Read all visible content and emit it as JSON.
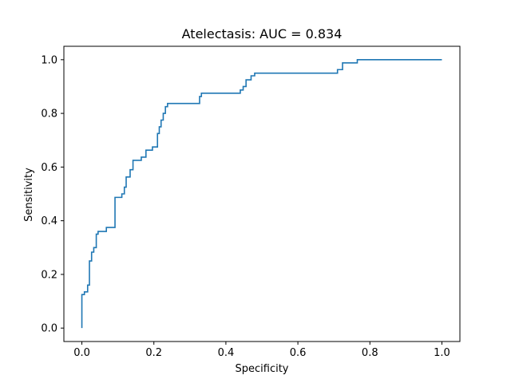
{
  "chart_data": {
    "type": "line",
    "title": "Atelectasis: AUC = 0.834",
    "xlabel": "Specificity",
    "ylabel": "Sensitivity",
    "xlim": [
      -0.05,
      1.05
    ],
    "ylim": [
      -0.05,
      1.05
    ],
    "xticks": [
      0.0,
      0.2,
      0.4,
      0.6,
      0.8,
      1.0
    ],
    "yticks": [
      0.0,
      0.2,
      0.4,
      0.6,
      0.8,
      1.0
    ],
    "xtick_labels": [
      "0.0",
      "0.2",
      "0.4",
      "0.6",
      "0.8",
      "1.0"
    ],
    "ytick_labels": [
      "0.0",
      "0.2",
      "0.4",
      "0.6",
      "0.8",
      "1.0"
    ],
    "grid": false,
    "series": [
      {
        "color": "#1f77b4",
        "x": [
          0.0,
          0.0,
          0.007,
          0.007,
          0.016,
          0.016,
          0.021,
          0.021,
          0.027,
          0.027,
          0.033,
          0.033,
          0.04,
          0.04,
          0.045,
          0.045,
          0.05,
          0.05,
          0.068,
          0.068,
          0.092,
          0.092,
          0.111,
          0.111,
          0.118,
          0.118,
          0.123,
          0.123,
          0.134,
          0.134,
          0.142,
          0.142,
          0.165,
          0.165,
          0.178,
          0.178,
          0.196,
          0.196,
          0.21,
          0.21,
          0.215,
          0.215,
          0.22,
          0.22,
          0.226,
          0.226,
          0.232,
          0.232,
          0.238,
          0.238,
          0.257,
          0.257,
          0.327,
          0.327,
          0.332,
          0.332,
          0.44,
          0.44,
          0.448,
          0.448,
          0.456,
          0.456,
          0.47,
          0.47,
          0.48,
          0.48,
          0.487,
          0.487,
          0.71,
          0.71,
          0.724,
          0.724,
          0.765,
          0.765,
          1.0
        ],
        "y": [
          0.0,
          0.125,
          0.125,
          0.135,
          0.135,
          0.16,
          0.16,
          0.25,
          0.25,
          0.283,
          0.283,
          0.3,
          0.3,
          0.35,
          0.35,
          0.36,
          0.36,
          0.36,
          0.36,
          0.375,
          0.375,
          0.487,
          0.487,
          0.5,
          0.5,
          0.525,
          0.525,
          0.563,
          0.563,
          0.59,
          0.59,
          0.625,
          0.625,
          0.637,
          0.637,
          0.663,
          0.663,
          0.675,
          0.675,
          0.725,
          0.725,
          0.75,
          0.75,
          0.775,
          0.775,
          0.8,
          0.8,
          0.825,
          0.825,
          0.837,
          0.837,
          0.837,
          0.837,
          0.863,
          0.863,
          0.875,
          0.875,
          0.887,
          0.887,
          0.9,
          0.9,
          0.925,
          0.925,
          0.94,
          0.94,
          0.95,
          0.95,
          0.95,
          0.95,
          0.963,
          0.963,
          0.988,
          0.988,
          1.0,
          1.0
        ]
      }
    ]
  }
}
